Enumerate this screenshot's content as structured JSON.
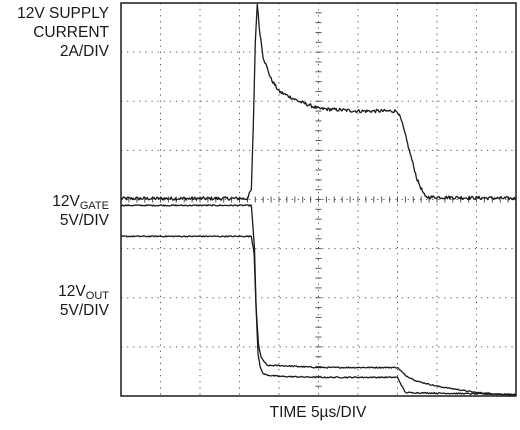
{
  "chart_data": {
    "type": "line",
    "title": "",
    "xlabel": "TIME 5µs/DIV",
    "ylabel": "",
    "grid": true,
    "grid_divisions": {
      "x": 10,
      "y": 8
    },
    "x_unit": "division",
    "xlim": [
      0,
      10
    ],
    "y_unit": "division",
    "ylim": [
      0,
      8
    ],
    "channel_labels": [
      {
        "id": "supply",
        "lines": [
          "12V SUPPLY",
          "CURRENT",
          "2A/DIV"
        ]
      },
      {
        "id": "gate",
        "main": "12V",
        "sub": "GATE",
        "scale": "5V/DIV"
      },
      {
        "id": "out",
        "main": "12V",
        "sub": "OUT",
        "scale": "5V/DIV"
      }
    ],
    "series": [
      {
        "id": "supply-current",
        "x": [
          0,
          3.2,
          3.3,
          3.35,
          3.4,
          3.45,
          3.5,
          3.6,
          3.8,
          4.0,
          4.5,
          5.0,
          6.0,
          7.0,
          7.1,
          7.3,
          7.5,
          7.7,
          10
        ],
        "y": [
          4.02,
          4.02,
          4.2,
          5.5,
          7.2,
          8.0,
          7.5,
          6.9,
          6.45,
          6.2,
          6.0,
          5.85,
          5.8,
          5.8,
          5.6,
          5.0,
          4.4,
          4.05,
          4.02
        ],
        "noise": 0.035
      },
      {
        "id": "gate-voltage",
        "x": [
          0,
          3.3,
          3.38,
          3.42,
          3.48,
          3.55,
          3.7,
          4.0,
          5.0,
          7.0,
          7.2,
          7.5,
          8.0,
          9.0,
          10
        ],
        "y": [
          3.88,
          3.88,
          3.0,
          1.8,
          1.05,
          0.78,
          0.62,
          0.62,
          0.58,
          0.58,
          0.42,
          0.3,
          0.2,
          0.07,
          0.02
        ],
        "noise": 0.012
      },
      {
        "id": "output-voltage",
        "x": [
          0,
          3.3,
          3.37,
          3.42,
          3.47,
          3.52,
          3.6,
          3.75,
          4.0,
          5.0,
          7.0,
          7.1,
          7.2,
          10
        ],
        "y": [
          3.25,
          3.25,
          2.9,
          1.8,
          0.85,
          0.6,
          0.45,
          0.42,
          0.4,
          0.38,
          0.38,
          0.22,
          0.07,
          0.03
        ],
        "noise": 0.012
      }
    ]
  }
}
